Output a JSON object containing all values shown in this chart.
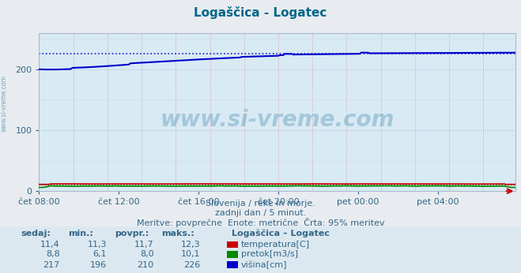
{
  "title": "Logaščica - Logatec",
  "fig_bg_color": "#e8e8e8",
  "plot_bg_color": "#d8eaf4",
  "outer_bg_color": "#e0e8f0",
  "subtitle1": "Slovenija / reke in morje.",
  "subtitle2": "zadnji dan / 5 minut.",
  "subtitle3": "Meritve: povprečne  Enote: metrične  Črta: 95% meritev",
  "yticks": [
    0,
    100,
    200
  ],
  "ylim": [
    0,
    260
  ],
  "xlim": [
    0,
    287
  ],
  "xtick_positions": [
    0,
    48,
    96,
    144,
    192,
    240
  ],
  "xtick_labels": [
    "čet 08:00",
    "čet 12:00",
    "čet 16:00",
    "čet 20:00",
    "pet 00:00",
    "pet 04:00"
  ],
  "watermark": "www.si-vreme.com",
  "watermark_color": "#4488aa",
  "title_color": "#006688",
  "axis_label_color": "#336688",
  "tick_label_color": "#336688",
  "legend_title": "Logaščica – Logatec",
  "legend_items": [
    {
      "label": "temperatura[C]",
      "color": "#cc0000"
    },
    {
      "label": "pretok[m3/s]",
      "color": "#008800"
    },
    {
      "label": "višina[cm]",
      "color": "#0000cc"
    }
  ],
  "stats_headers": [
    "sedaj:",
    "min.:",
    "povpr.:",
    "maks.:"
  ],
  "stats_data": [
    [
      "11,4",
      "11,3",
      "11,7",
      "12,3"
    ],
    [
      "8,8",
      "6,1",
      "8,0",
      "10,1"
    ],
    [
      "217",
      "196",
      "210",
      "226"
    ]
  ],
  "n_points": 288,
  "visina_start": 200,
  "visina_end": 226,
  "visina_max_ref": 226,
  "temp_ref": 12.3,
  "flow_ref": 10.1
}
